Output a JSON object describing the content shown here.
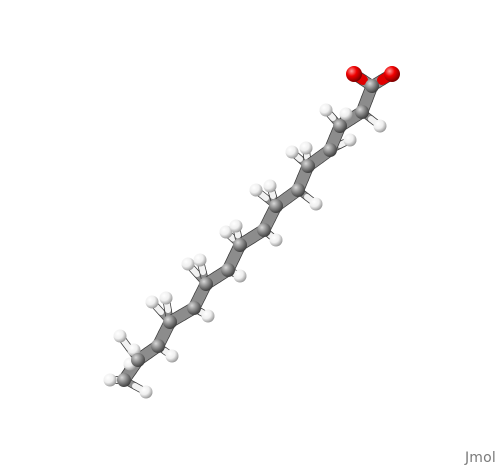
{
  "viewer": {
    "watermark": "Jmol"
  },
  "colors": {
    "background": "#ffffff",
    "carbon": "#8c8c8c",
    "hydrogen": "#f2f2f2",
    "oxygen": "#e00000"
  }
}
